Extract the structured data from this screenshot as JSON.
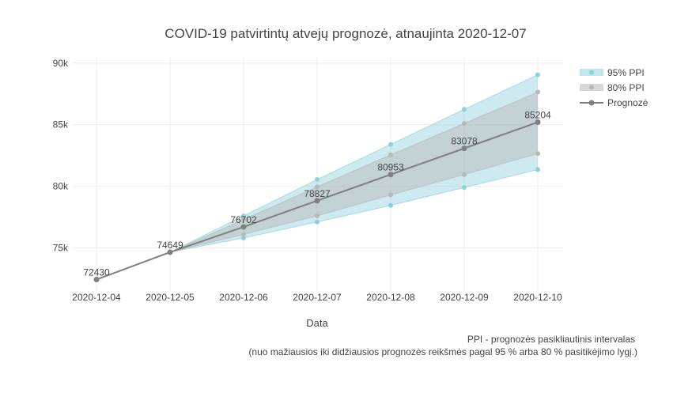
{
  "chart_data": {
    "type": "line",
    "title": "COVID-19 patvirtintų atvejų prognozė, atnaujinta 2020-12-07",
    "xlabel": "Data",
    "ylabel": "",
    "x": [
      "2020-12-04",
      "2020-12-05",
      "2020-12-06",
      "2020-12-07",
      "2020-12-08",
      "2020-12-09",
      "2020-12-10"
    ],
    "y_ticks": [
      "75k",
      "80k",
      "85k",
      "90k"
    ],
    "y_tick_values": [
      75000,
      80000,
      85000,
      90000
    ],
    "ylim": [
      71500,
      90500
    ],
    "grid": true,
    "legend_position": "top-right",
    "forecast": {
      "name": "Prognozė",
      "color": "#7f7f7f",
      "values": [
        72430,
        74649,
        76702,
        78827,
        80953,
        83078,
        85204
      ],
      "labels": [
        "72430",
        "74649",
        "76702",
        "78827",
        "80953",
        "83078",
        "85204"
      ]
    },
    "pi95": {
      "name": "95% PPI",
      "color": "#8fd1db",
      "x_start_index": 1,
      "lower": [
        74649,
        75800,
        77100,
        78450,
        79900,
        81350
      ],
      "upper": [
        74649,
        77600,
        80550,
        83400,
        86250,
        89050
      ]
    },
    "pi80": {
      "name": "80% PPI",
      "color": "#b8b8b8",
      "x_start_index": 1,
      "lower": [
        74649,
        76100,
        77600,
        79300,
        80950,
        82650
      ],
      "upper": [
        74649,
        77300,
        79950,
        82550,
        85100,
        87650
      ]
    },
    "annotation_lines": [
      "PPI - prognozės pasikliautinis intervalas",
      "(nuo mažiausios iki didžiausios prognozės reikšmės pagal 95 % arba 80 % pasitikėjimo lygį.)"
    ]
  }
}
